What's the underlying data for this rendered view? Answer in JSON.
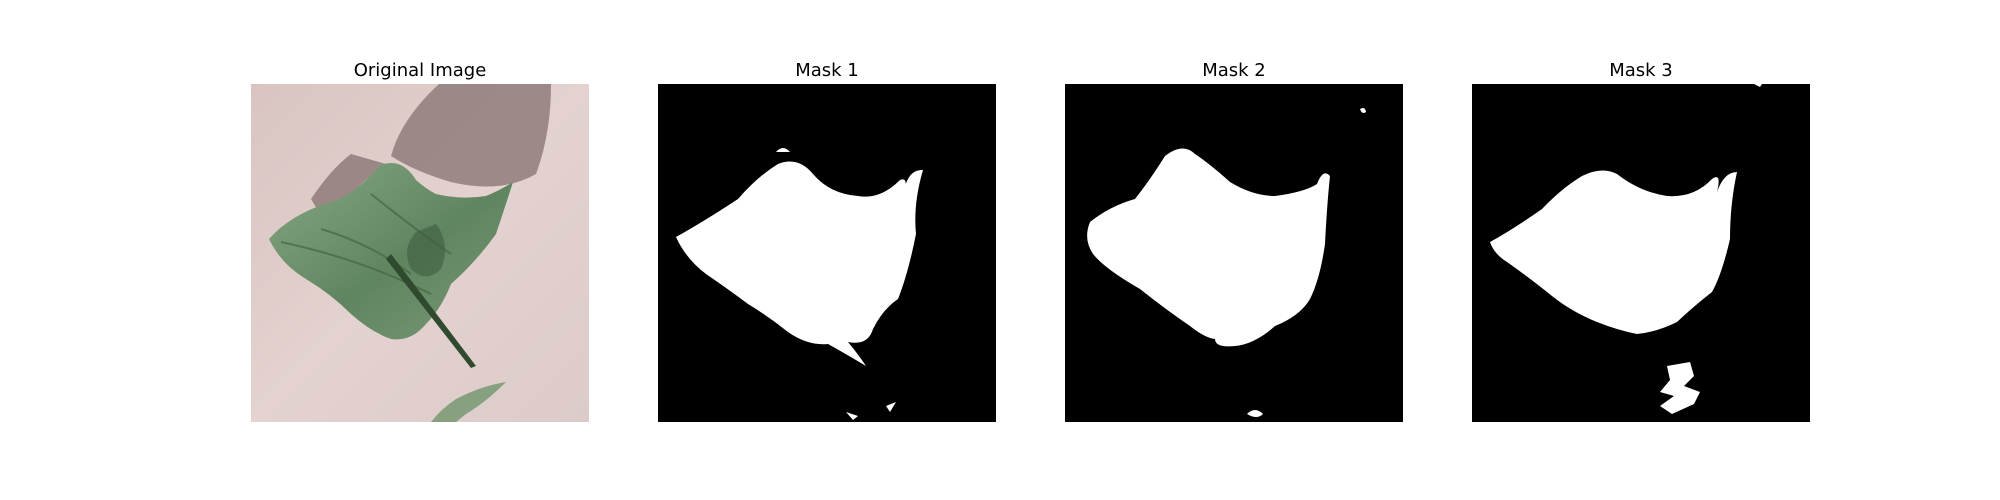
{
  "figure": {
    "panels": [
      {
        "title": "Original Image",
        "kind": "photo"
      },
      {
        "title": "Mask 1",
        "kind": "mask"
      },
      {
        "title": "Mask 2",
        "kind": "mask"
      },
      {
        "title": "Mask 3",
        "kind": "mask"
      }
    ]
  },
  "colors": {
    "mask_background": "#000000",
    "mask_foreground": "#ffffff",
    "photo_background": "#ddc9c6",
    "shadow": "#8c7a78",
    "leaf_light": "#7fa07b",
    "leaf_dark": "#3d5a3a"
  }
}
